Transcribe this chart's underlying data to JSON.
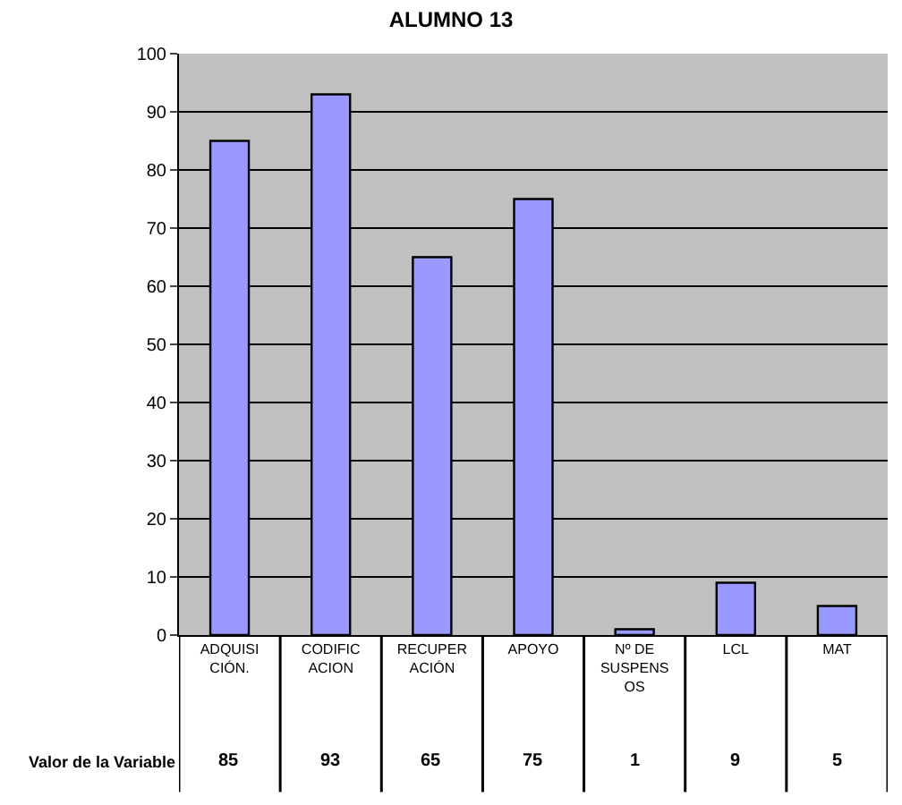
{
  "chart_data": {
    "type": "bar",
    "title": "ALUMNO 13",
    "categories": [
      "ADQUISICIÓN.",
      "CODIFICACION",
      "RECUPERACIÓN",
      "APOYO",
      "Nº DE SUSPENSOS",
      "LCL",
      "MAT"
    ],
    "series": [
      {
        "name": "Valor de la Variable",
        "color": "#9999ff",
        "values": [
          85,
          93,
          65,
          75,
          1,
          9,
          5
        ]
      }
    ],
    "ylim": [
      0,
      100
    ],
    "yticks": [
      0,
      10,
      20,
      30,
      40,
      50,
      60,
      70,
      80,
      90,
      100
    ],
    "grid": "y",
    "legend": false,
    "data_labels": true
  }
}
